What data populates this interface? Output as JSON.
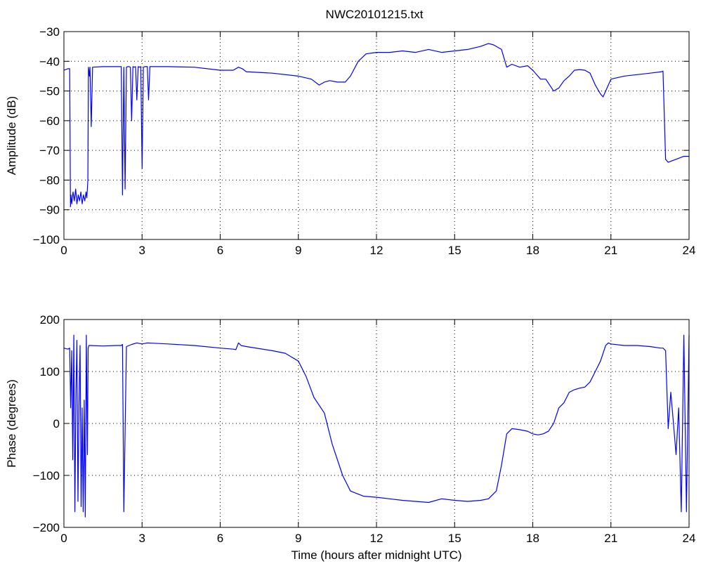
{
  "figure": {
    "background": "#ffffff",
    "line_color": "#0000ff",
    "grid_color": "#000000"
  },
  "chart_data": [
    {
      "type": "line",
      "title": "NWC20101215.txt",
      "xlabel": "",
      "ylabel": "Amplitude (dB)",
      "xlim": [
        0,
        24
      ],
      "ylim": [
        -100,
        -30
      ],
      "xticks": [
        0,
        3,
        6,
        9,
        12,
        15,
        18,
        21,
        24
      ],
      "yticks": [
        -100,
        -90,
        -80,
        -70,
        -60,
        -50,
        -40,
        -30
      ],
      "grid": true,
      "series": [
        {
          "color": "#0000ff",
          "x": [
            0,
            0.15,
            0.22,
            0.25,
            0.27,
            0.3,
            0.35,
            0.4,
            0.45,
            0.5,
            0.55,
            0.6,
            0.65,
            0.7,
            0.75,
            0.8,
            0.85,
            0.88,
            0.9,
            0.92,
            0.94,
            0.98,
            1.0,
            1.05,
            1.1,
            1.5,
            2.0,
            2.2,
            2.25,
            2.3,
            2.35,
            2.4,
            2.45,
            2.5,
            2.55,
            2.6,
            2.65,
            2.7,
            2.75,
            2.8,
            2.85,
            2.9,
            2.95,
            3.0,
            3.05,
            3.1,
            3.2,
            3.25,
            3.3,
            4.0,
            5.0,
            6.0,
            6.5,
            6.7,
            6.85,
            7.0,
            8.0,
            9.0,
            9.5,
            9.8,
            10.0,
            10.2,
            10.5,
            10.8,
            11.0,
            11.3,
            11.6,
            12.0,
            12.5,
            13.0,
            13.5,
            14.0,
            14.5,
            15.0,
            15.5,
            16.0,
            16.3,
            16.5,
            16.8,
            17.0,
            17.2,
            17.5,
            17.8,
            18.0,
            18.3,
            18.5,
            18.8,
            19.0,
            19.2,
            19.4,
            19.6,
            19.8,
            20.0,
            20.2,
            20.4,
            20.6,
            20.7,
            20.8,
            21.0,
            21.5,
            22.0,
            22.5,
            22.95,
            23.0,
            23.1,
            23.2,
            23.5,
            23.8,
            24.0
          ],
          "y": [
            -43,
            -42.5,
            -42.5,
            -89,
            -85,
            -88,
            -84,
            -87,
            -83,
            -88,
            -85,
            -87,
            -84,
            -88,
            -85,
            -87,
            -84,
            -86,
            -83,
            -80,
            -42,
            -45,
            -42,
            -62,
            -42,
            -41.8,
            -41.8,
            -41.8,
            -85,
            -42,
            -83,
            -42,
            -41.8,
            -41.8,
            -42,
            -60,
            -41.8,
            -42,
            -41.8,
            -53,
            -41.8,
            -42,
            -41.8,
            -76,
            -42,
            -41.8,
            -41.8,
            -53,
            -41.8,
            -41.8,
            -42,
            -43,
            -43,
            -42,
            -42.5,
            -43.5,
            -44,
            -45,
            -46,
            -48,
            -47,
            -46.5,
            -47,
            -47,
            -45,
            -40,
            -37.5,
            -37,
            -37,
            -36.5,
            -37,
            -36,
            -37,
            -36.5,
            -36,
            -35,
            -34,
            -34.5,
            -36,
            -42,
            -41,
            -42,
            -41.5,
            -43,
            -46,
            -46,
            -50,
            -49,
            -46.5,
            -45,
            -43,
            -42.8,
            -43,
            -44,
            -48,
            -51,
            -52,
            -50,
            -46,
            -45,
            -44.5,
            -44,
            -43.5,
            -43.3,
            -73,
            -74,
            -73,
            -72,
            -72
          ]
        }
      ]
    },
    {
      "type": "line",
      "title": "",
      "xlabel": "Time (hours after midnight UTC)",
      "ylabel": "Phase (degrees)",
      "xlim": [
        0,
        24
      ],
      "ylim": [
        -200,
        200
      ],
      "xticks": [
        0,
        3,
        6,
        9,
        12,
        15,
        18,
        21,
        24
      ],
      "yticks": [
        -200,
        -100,
        0,
        100,
        200
      ],
      "grid": true,
      "series": [
        {
          "color": "#0000ff",
          "x": [
            0,
            0.15,
            0.22,
            0.26,
            0.3,
            0.34,
            0.38,
            0.42,
            0.46,
            0.5,
            0.54,
            0.58,
            0.62,
            0.66,
            0.7,
            0.74,
            0.78,
            0.82,
            0.86,
            0.9,
            0.93,
            0.96,
            1.0,
            1.5,
            2.0,
            2.2,
            2.25,
            2.3,
            2.4,
            2.6,
            2.8,
            3.0,
            3.2,
            4.0,
            5.0,
            6.0,
            6.5,
            6.6,
            6.7,
            6.8,
            7.0,
            8.0,
            8.5,
            9.0,
            9.3,
            9.6,
            10.0,
            10.3,
            10.7,
            11.0,
            11.5,
            12.0,
            12.5,
            13.0,
            13.5,
            14.0,
            14.5,
            15.0,
            15.5,
            16.0,
            16.3,
            16.6,
            16.8,
            17.0,
            17.2,
            17.5,
            17.8,
            18.0,
            18.2,
            18.4,
            18.6,
            18.8,
            19.0,
            19.2,
            19.4,
            19.6,
            19.8,
            20.0,
            20.2,
            20.4,
            20.6,
            20.8,
            20.9,
            21.0,
            21.5,
            22.0,
            22.5,
            22.9,
            23.0,
            23.1,
            23.2,
            23.3,
            23.4,
            23.5,
            23.6,
            23.7,
            23.8,
            23.9,
            24.0
          ],
          "y": [
            145,
            143,
            145,
            30,
            140,
            -70,
            170,
            -170,
            60,
            160,
            -150,
            40,
            150,
            -160,
            30,
            -170,
            45,
            -180,
            170,
            -60,
            145,
            150,
            150,
            149,
            150,
            150,
            152,
            -170,
            148,
            152,
            155,
            153,
            155,
            153,
            150,
            145,
            143,
            142,
            155,
            150,
            148,
            140,
            135,
            120,
            90,
            50,
            20,
            -40,
            -100,
            -130,
            -140,
            -142,
            -145,
            -148,
            -150,
            -152,
            -145,
            -148,
            -150,
            -148,
            -145,
            -130,
            -80,
            -20,
            -10,
            -12,
            -15,
            -20,
            -22,
            -20,
            -15,
            0,
            30,
            40,
            60,
            65,
            68,
            70,
            80,
            100,
            120,
            150,
            155,
            153,
            150,
            150,
            148,
            145,
            145,
            140,
            -10,
            60,
            0,
            -60,
            30,
            -170,
            170,
            -170,
            170
          ]
        }
      ]
    }
  ]
}
